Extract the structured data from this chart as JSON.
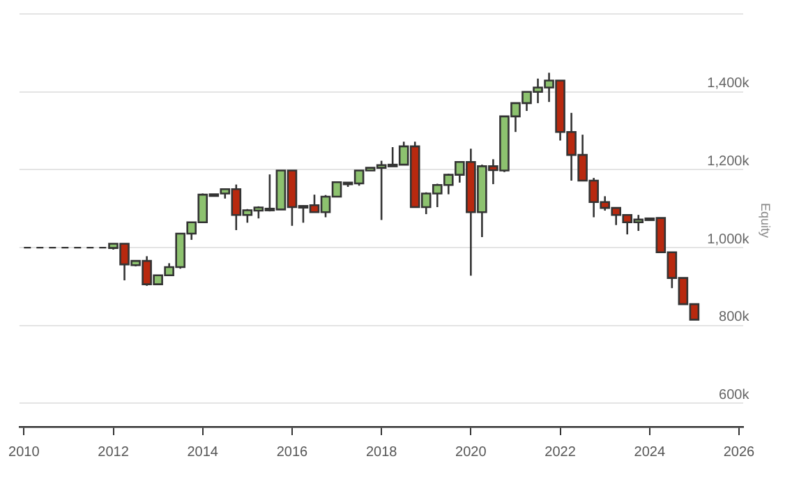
{
  "chart_data": {
    "type": "candlestick",
    "ylabel": "Equity",
    "xlim": [
      2009.9,
      2026.1
    ],
    "xticks": [
      2010,
      2012,
      2014,
      2016,
      2018,
      2020,
      2022,
      2024,
      2026
    ],
    "ylim": [
      540,
      1600
    ],
    "yticks": [
      {
        "value": 600,
        "label": "600k"
      },
      {
        "value": 800,
        "label": "800k"
      },
      {
        "value": 1000,
        "label": "1,000k"
      },
      {
        "value": 1200,
        "label": "1,200k"
      },
      {
        "value": 1400,
        "label": "1,400k"
      },
      {
        "value": 1600,
        "label": null
      }
    ],
    "grid": "y",
    "legend": false,
    "series": [
      {
        "type": "line",
        "x": [
          2010,
          2012
        ],
        "values": [
          1000,
          1000
        ],
        "color": "#333333",
        "line_style": "dashed",
        "marker": "none"
      },
      {
        "color": "#333333",
        "x": [
          2012,
          2012.25,
          2012.5,
          2012.75,
          2013,
          2013.25,
          2013.5,
          2013.75,
          2014,
          2014.25,
          2014.5,
          2014.75,
          2015,
          2015.25,
          2015.5,
          2015.75,
          2016,
          2016.25,
          2016.5,
          2016.75,
          2017,
          2017.25,
          2017.5,
          2017.75,
          2018,
          2018.25,
          2018.5,
          2018.75,
          2019,
          2019.25,
          2019.5,
          2019.75,
          2020,
          2020.25,
          2020.5,
          2020.75,
          2021,
          2021.25,
          2021.5,
          2021.75,
          2022,
          2022.25,
          2022.5,
          2022.75,
          2023,
          2023.25,
          2023.5,
          2023.75,
          2024,
          2024.25,
          2024.5,
          2024.75,
          2025
        ],
        "ohlc": [
          [
            999,
            1010,
            995,
            1010
          ],
          [
            1010,
            1010,
            916,
            957
          ],
          [
            955,
            966,
            952,
            966
          ],
          [
            966,
            978,
            902,
            906
          ],
          [
            906,
            929,
            906,
            929
          ],
          [
            929,
            960,
            929,
            950
          ],
          [
            950,
            1036,
            946,
            1036
          ],
          [
            1036,
            1065,
            1020,
            1065
          ],
          [
            1065,
            1139,
            1065,
            1136
          ],
          [
            1136,
            1138,
            1135,
            1137
          ],
          [
            1139,
            1150,
            1126,
            1150
          ],
          [
            1150,
            1162,
            1045,
            1084
          ],
          [
            1084,
            1099,
            1064,
            1096
          ],
          [
            1095,
            1106,
            1075,
            1103
          ],
          [
            1099,
            1188,
            1093,
            1100
          ],
          [
            1098,
            1198,
            1098,
            1198
          ],
          [
            1198,
            1198,
            1056,
            1104
          ],
          [
            1106,
            1109,
            1064,
            1107
          ],
          [
            1109,
            1136,
            1091,
            1091
          ],
          [
            1091,
            1135,
            1078,
            1131
          ],
          [
            1131,
            1168,
            1131,
            1168
          ],
          [
            1165,
            1168,
            1156,
            1167
          ],
          [
            1165,
            1198,
            1159,
            1198
          ],
          [
            1198,
            1205,
            1198,
            1205
          ],
          [
            1205,
            1223,
            1071,
            1212
          ],
          [
            1212,
            1258,
            1211,
            1213
          ],
          [
            1213,
            1272,
            1213,
            1260
          ],
          [
            1260,
            1272,
            1104,
            1104
          ],
          [
            1104,
            1142,
            1086,
            1139
          ],
          [
            1139,
            1164,
            1104,
            1161
          ],
          [
            1161,
            1190,
            1137,
            1187
          ],
          [
            1187,
            1220,
            1167,
            1220
          ],
          [
            1220,
            1254,
            928,
            1091
          ],
          [
            1091,
            1213,
            1027,
            1209
          ],
          [
            1209,
            1227,
            1163,
            1199
          ],
          [
            1198,
            1337,
            1194,
            1337
          ],
          [
            1337,
            1371,
            1297,
            1371
          ],
          [
            1371,
            1400,
            1351,
            1400
          ],
          [
            1400,
            1434,
            1371,
            1411
          ],
          [
            1411,
            1449,
            1374,
            1429
          ],
          [
            1429,
            1429,
            1275,
            1297
          ],
          [
            1297,
            1346,
            1172,
            1238
          ],
          [
            1238,
            1290,
            1172,
            1172
          ],
          [
            1172,
            1179,
            1078,
            1117
          ],
          [
            1117,
            1132,
            1095,
            1102
          ],
          [
            1102,
            1102,
            1058,
            1084
          ],
          [
            1084,
            1084,
            1034,
            1065
          ],
          [
            1065,
            1084,
            1043,
            1072
          ],
          [
            1075,
            1076,
            1073,
            1074
          ],
          [
            1076,
            1076,
            988,
            988
          ],
          [
            988,
            988,
            896,
            922
          ],
          [
            922,
            922,
            855,
            855
          ],
          [
            855,
            855,
            815,
            815
          ]
        ],
        "colors": [
          "#8dc26f",
          "#b8290f",
          "#8dc26f",
          "#b8290f",
          "#8dc26f",
          "#8dc26f",
          "#8dc26f",
          "#8dc26f",
          "#8dc26f",
          "#8dc26f",
          "#8dc26f",
          "#b8290f",
          "#8dc26f",
          "#8dc26f",
          "#8dc26f",
          "#8dc26f",
          "#b8290f",
          "#8dc26f",
          "#b8290f",
          "#8dc26f",
          "#8dc26f",
          "#8dc26f",
          "#8dc26f",
          "#8dc26f",
          "#8dc26f",
          "#8dc26f",
          "#8dc26f",
          "#b8290f",
          "#8dc26f",
          "#8dc26f",
          "#8dc26f",
          "#8dc26f",
          "#b8290f",
          "#8dc26f",
          "#b8290f",
          "#8dc26f",
          "#8dc26f",
          "#8dc26f",
          "#8dc26f",
          "#8dc26f",
          "#b8290f",
          "#b8290f",
          "#b8290f",
          "#b8290f",
          "#b8290f",
          "#b8290f",
          "#b8290f",
          "#8dc26f",
          "#b8290f",
          "#b8290f",
          "#b8290f",
          "#b8290f",
          "#b8290f"
        ]
      }
    ]
  }
}
